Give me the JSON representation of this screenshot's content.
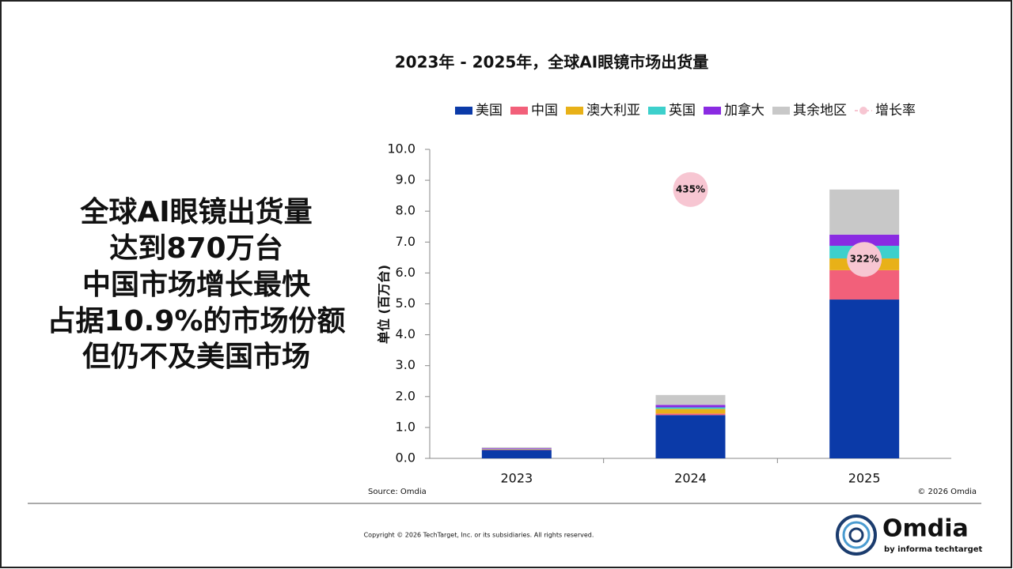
{
  "chart_data": {
    "type": "stacked_bar",
    "title": "2023年 - 2025年，全球AI眼镜市场出货量",
    "y_label": "单位 (百万台)",
    "categories": [
      "2023",
      "2024",
      "2025"
    ],
    "series": [
      {
        "name": "美国",
        "color": "#0b3aa8",
        "values": [
          0.27,
          1.4,
          5.14
        ]
      },
      {
        "name": "中国",
        "color": "#f2607a",
        "values": [
          0.02,
          0.05,
          0.95
        ]
      },
      {
        "name": "澳大利亚",
        "color": "#e8b118",
        "values": [
          0.01,
          0.15,
          0.38
        ]
      },
      {
        "name": "英国",
        "color": "#3dd0cc",
        "values": [
          0.01,
          0.05,
          0.41
        ]
      },
      {
        "name": "加拿大",
        "color": "#8a2be2",
        "values": [
          0.02,
          0.08,
          0.36
        ]
      },
      {
        "name": "其余地区",
        "color": "#c8c8c8",
        "values": [
          0.03,
          0.32,
          1.46
        ]
      },
      {
        "name": "增长率",
        "color": "#f7c6d2",
        "axis": "y2",
        "type": "line",
        "values": [
          null,
          435,
          322
        ],
        "value_labels": [
          null,
          "435%",
          "322%"
        ]
      }
    ],
    "ylim": [
      0,
      10
    ],
    "yticks": [
      {
        "value": 0,
        "label": "0.0"
      },
      {
        "value": 1,
        "label": "1.0"
      },
      {
        "value": 2,
        "label": "2.0"
      },
      {
        "value": 3,
        "label": "3.0"
      },
      {
        "value": 4,
        "label": "4.0"
      },
      {
        "value": 5,
        "label": "5.0"
      },
      {
        "value": 6,
        "label": "6.0"
      },
      {
        "value": 7,
        "label": "7.0"
      },
      {
        "value": 8,
        "label": "8.0"
      },
      {
        "value": 9,
        "label": "9.0"
      },
      {
        "value": 10,
        "label": "10.0"
      }
    ],
    "y2lim": [
      0,
      500
    ],
    "source": "Source: Omdia",
    "chart_copyright": "© 2026 Omdia"
  },
  "headline": [
    "全球AI眼镜出货量",
    "达到870万台",
    "中国市场增长最快",
    "占据10.9%的市场份额",
    "但仍不及美国市场"
  ],
  "footer": {
    "copyright": "Copyright © 2026 TechTarget, Inc. or its subsidiaries. All rights reserved.",
    "logo": "Omdia",
    "logo_sub": "by informa techtarget"
  }
}
